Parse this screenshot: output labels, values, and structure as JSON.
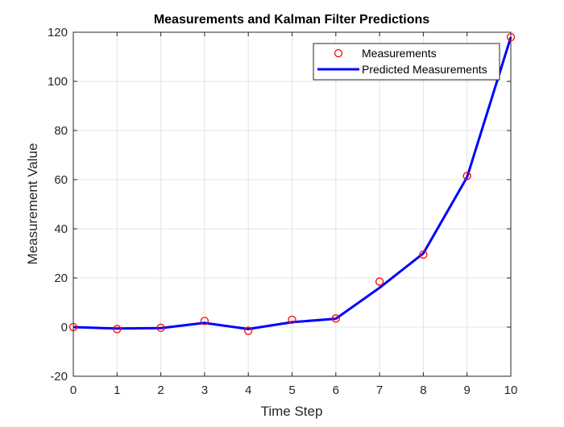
{
  "chart_data": {
    "type": "line",
    "title": "Measurements and Kalman Filter Predictions",
    "xlabel": "Time Step",
    "ylabel": "Measurement Value",
    "xlim": [
      0,
      10
    ],
    "ylim": [
      -20,
      120
    ],
    "xticks": [
      0,
      1,
      2,
      3,
      4,
      5,
      6,
      7,
      8,
      9,
      10
    ],
    "yticks": [
      -20,
      0,
      20,
      40,
      60,
      80,
      100,
      120
    ],
    "grid": true,
    "legend_position": "top-right",
    "series": [
      {
        "name": "Measurements",
        "style": "markers",
        "marker": "circle",
        "color": "#ff0000",
        "x": [
          0,
          1,
          2,
          3,
          4,
          5,
          6,
          7,
          8,
          9,
          10
        ],
        "y": [
          0,
          -0.8,
          -0.3,
          2.5,
          -1.5,
          3,
          3.5,
          18.5,
          29.5,
          61.5,
          118
        ]
      },
      {
        "name": "Predicted Measurements",
        "style": "line",
        "color": "#0000ff",
        "x": [
          0,
          1,
          2,
          3,
          4,
          5,
          6,
          7,
          8,
          9,
          10
        ],
        "y": [
          0,
          -0.6,
          -0.4,
          1.7,
          -0.8,
          2,
          3.4,
          16,
          30,
          61,
          118
        ]
      }
    ]
  }
}
